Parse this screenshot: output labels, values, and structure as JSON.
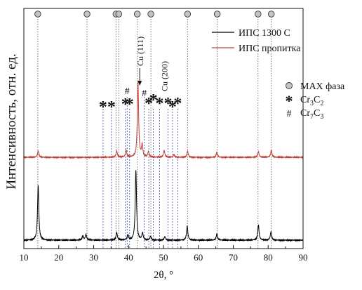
{
  "chart_data": {
    "type": "line",
    "xlabel": "2θ, °",
    "ylabel": "Интенсивность, отн. ед.",
    "xlim": [
      10,
      90
    ],
    "xticks": [
      10,
      20,
      30,
      40,
      50,
      60,
      70,
      80,
      90
    ],
    "series": [
      {
        "name": "ИПС 1300 С",
        "color": "#000000",
        "baseline": 0,
        "peaks": [
          {
            "x": 14.1,
            "h": 0.78
          },
          {
            "x": 26.9,
            "h": 0.06
          },
          {
            "x": 27.8,
            "h": 0.08
          },
          {
            "x": 36.6,
            "h": 0.11
          },
          {
            "x": 39.8,
            "h": 0.07
          },
          {
            "x": 42.1,
            "h": 1.0
          },
          {
            "x": 44.0,
            "h": 0.1
          },
          {
            "x": 46.3,
            "h": 0.05
          },
          {
            "x": 50.4,
            "h": 0.05
          },
          {
            "x": 56.8,
            "h": 0.2
          },
          {
            "x": 65.3,
            "h": 0.09
          },
          {
            "x": 77.2,
            "h": 0.22
          },
          {
            "x": 80.8,
            "h": 0.12
          }
        ]
      },
      {
        "name": "ИПС пропитка",
        "color": "#c0403a",
        "baseline": 1.18,
        "peaks": [
          {
            "x": 14.1,
            "h": 0.09
          },
          {
            "x": 36.6,
            "h": 0.09
          },
          {
            "x": 39.3,
            "h": 0.1
          },
          {
            "x": 42.7,
            "h": 1.06
          },
          {
            "x": 43.9,
            "h": 0.17
          },
          {
            "x": 45.7,
            "h": 0.08
          },
          {
            "x": 50.2,
            "h": 0.1
          },
          {
            "x": 53.0,
            "h": 0.04
          },
          {
            "x": 56.9,
            "h": 0.09
          },
          {
            "x": 65.3,
            "h": 0.07
          },
          {
            "x": 77.2,
            "h": 0.08
          },
          {
            "x": 80.9,
            "h": 0.1
          }
        ]
      }
    ],
    "max_phase_positions": [
      14.0,
      28.1,
      36.4,
      37.2,
      42.5,
      46.4,
      56.9,
      65.4,
      77.1,
      80.9
    ],
    "cr3c2_positions": [
      32.7,
      35.1,
      39.1,
      40.3,
      45.8,
      47.1,
      48.9,
      51.3,
      52.6,
      54.1
    ],
    "cr7c3_positions": [
      39.6,
      44.5
    ],
    "annotations": [
      {
        "text": "Cu (111)",
        "x": 43.2
      },
      {
        "text": "Cu (200)",
        "x": 50.3
      }
    ],
    "legend": {
      "position": "top-right",
      "entries": [
        {
          "label": "ИПС 1300 С",
          "color": "#000000"
        },
        {
          "label": "ИПС пропитка",
          "color": "#c0403a"
        }
      ]
    },
    "marker_legend": [
      {
        "symbol": "●",
        "label": "MAX фаза"
      },
      {
        "symbol": "*",
        "label": "Cr3C2",
        "formula": [
          "Cr",
          "3",
          "C",
          "2"
        ]
      },
      {
        "symbol": "#",
        "label": "Cr7C3",
        "formula": [
          "Cr",
          "7",
          "C",
          "3"
        ]
      }
    ]
  }
}
